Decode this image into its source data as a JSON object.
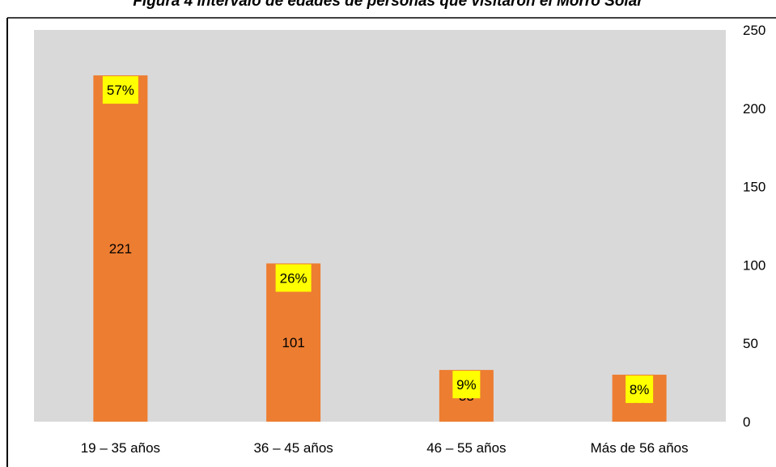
{
  "chart_data": {
    "type": "bar",
    "title": "Figura 4 Intervalo de edades de personas que visitaron el Morro Solar",
    "categories": [
      "19  – 35 años",
      "36 – 45 años",
      "46 – 55 años",
      "Más de 56 años"
    ],
    "values": [
      221,
      101,
      33,
      30
    ],
    "value_labels": [
      "221",
      "101",
      "33",
      "30"
    ],
    "percent_labels": [
      "57%",
      "26%",
      "9%",
      "8%"
    ],
    "y_ticks": [
      "0",
      "50",
      "100",
      "150",
      "200",
      "250"
    ],
    "ylim": [
      0,
      250
    ],
    "y_axis_position": "right",
    "grid": false,
    "legend": "none",
    "colors": {
      "bar": "#ED7D31",
      "plot_background": "#D9D9D9",
      "percent_label_background": "#FFFF00",
      "text": "#000000"
    }
  }
}
